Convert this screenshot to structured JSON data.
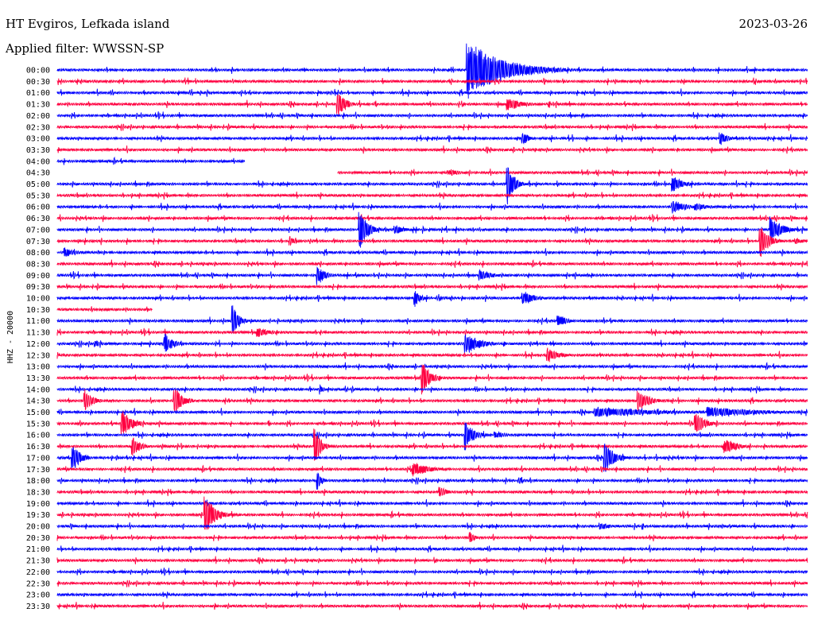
{
  "header": {
    "station": "HT Evgiros, Lefkada island",
    "filter": "Applied filter: WWSSN-SP",
    "date": "2023-03-26"
  },
  "colors": {
    "blue": "#0000ff",
    "red": "#ff0040"
  },
  "chart_data": {
    "type": "helicorder",
    "ylabel": "HHZ - 20000",
    "row_labels": [
      "00:00",
      "00:30",
      "01:00",
      "01:30",
      "02:00",
      "02:30",
      "03:00",
      "03:30",
      "04:00",
      "04:30",
      "05:00",
      "05:30",
      "06:00",
      "06:30",
      "07:00",
      "07:30",
      "08:00",
      "08:30",
      "09:00",
      "09:30",
      "10:00",
      "10:30",
      "11:00",
      "11:30",
      "12:00",
      "12:30",
      "13:00",
      "13:30",
      "14:00",
      "14:30",
      "15:00",
      "15:30",
      "16:00",
      "16:30",
      "17:00",
      "17:30",
      "18:00",
      "18:30",
      "19:00",
      "19:30",
      "20:00",
      "20:30",
      "21:00",
      "21:30",
      "22:00",
      "22:30",
      "23:00",
      "23:30"
    ],
    "row_minutes": 30,
    "gaps": [
      {
        "row": 8,
        "from_min": 7.5,
        "to_min": 30
      },
      {
        "row": 9,
        "from_min": 0,
        "to_min": 11.2
      },
      {
        "row": 21,
        "from_min": 3.8,
        "to_min": 30
      }
    ],
    "events": [
      {
        "row": 0,
        "min": 16.4,
        "amp": 2.6,
        "dur": 1.8,
        "big": true
      },
      {
        "row": 1,
        "min": 9.3,
        "amp": 0.15,
        "dur": 0.3
      },
      {
        "row": 3,
        "min": 11.2,
        "amp": 1.0,
        "dur": 0.4
      },
      {
        "row": 3,
        "min": 18.0,
        "amp": 0.5,
        "dur": 0.8
      },
      {
        "row": 6,
        "min": 18.6,
        "amp": 0.6,
        "dur": 0.3
      },
      {
        "row": 6,
        "min": 26.5,
        "amp": 0.6,
        "dur": 0.4
      },
      {
        "row": 9,
        "min": 15.7,
        "amp": 0.25,
        "dur": 0.6
      },
      {
        "row": 10,
        "min": 18.0,
        "amp": 1.8,
        "dur": 0.3
      },
      {
        "row": 10,
        "min": 24.6,
        "amp": 0.7,
        "dur": 0.5
      },
      {
        "row": 12,
        "min": 24.6,
        "amp": 0.5,
        "dur": 0.8
      },
      {
        "row": 12,
        "min": 25.5,
        "amp": 0.3,
        "dur": 0.8
      },
      {
        "row": 14,
        "min": 12.1,
        "amp": 1.5,
        "dur": 0.4
      },
      {
        "row": 14,
        "min": 13.5,
        "amp": 0.4,
        "dur": 0.5
      },
      {
        "row": 14,
        "min": 28.5,
        "amp": 1.0,
        "dur": 0.6
      },
      {
        "row": 15,
        "min": 9.3,
        "amp": 0.4,
        "dur": 0.3
      },
      {
        "row": 15,
        "min": 28.1,
        "amp": 1.4,
        "dur": 0.4
      },
      {
        "row": 15,
        "min": 29.5,
        "amp": 0.3,
        "dur": 0.4
      },
      {
        "row": 16,
        "min": 0.3,
        "amp": 0.4,
        "dur": 0.5
      },
      {
        "row": 18,
        "min": 10.4,
        "amp": 0.8,
        "dur": 0.4
      },
      {
        "row": 18,
        "min": 16.9,
        "amp": 0.4,
        "dur": 0.7
      },
      {
        "row": 20,
        "min": 14.3,
        "amp": 0.7,
        "dur": 0.3
      },
      {
        "row": 20,
        "min": 18.6,
        "amp": 0.6,
        "dur": 0.6
      },
      {
        "row": 22,
        "min": 7.0,
        "amp": 1.4,
        "dur": 0.3
      },
      {
        "row": 22,
        "min": 20.0,
        "amp": 0.6,
        "dur": 0.4
      },
      {
        "row": 23,
        "min": 8.0,
        "amp": 0.4,
        "dur": 0.7
      },
      {
        "row": 24,
        "min": 1.5,
        "amp": 0.3,
        "dur": 0.4
      },
      {
        "row": 24,
        "min": 4.3,
        "amp": 0.8,
        "dur": 0.4
      },
      {
        "row": 24,
        "min": 16.3,
        "amp": 0.9,
        "dur": 0.7
      },
      {
        "row": 25,
        "min": 19.6,
        "amp": 0.6,
        "dur": 0.6
      },
      {
        "row": 27,
        "min": 14.6,
        "amp": 1.3,
        "dur": 0.4
      },
      {
        "row": 28,
        "min": 10.5,
        "amp": 0.4,
        "dur": 0.2
      },
      {
        "row": 29,
        "min": 1.1,
        "amp": 0.9,
        "dur": 0.4
      },
      {
        "row": 29,
        "min": 4.7,
        "amp": 1.2,
        "dur": 0.4
      },
      {
        "row": 29,
        "min": 23.2,
        "amp": 0.8,
        "dur": 0.6
      },
      {
        "row": 30,
        "min": 21.5,
        "amp": 0.4,
        "dur": 3.5
      },
      {
        "row": 30,
        "min": 26.0,
        "amp": 0.4,
        "dur": 3.0
      },
      {
        "row": 31,
        "min": 2.6,
        "amp": 1.0,
        "dur": 0.5
      },
      {
        "row": 31,
        "min": 25.5,
        "amp": 0.9,
        "dur": 0.5
      },
      {
        "row": 32,
        "min": 16.3,
        "amp": 1.2,
        "dur": 0.4
      },
      {
        "row": 32,
        "min": 17.5,
        "amp": 0.3,
        "dur": 0.6
      },
      {
        "row": 33,
        "min": 10.3,
        "amp": 1.4,
        "dur": 0.3
      },
      {
        "row": 33,
        "min": 3.0,
        "amp": 0.8,
        "dur": 0.4
      },
      {
        "row": 33,
        "min": 26.7,
        "amp": 0.6,
        "dur": 0.6
      },
      {
        "row": 34,
        "min": 0.6,
        "amp": 1.1,
        "dur": 0.4
      },
      {
        "row": 34,
        "min": 21.9,
        "amp": 1.1,
        "dur": 0.5
      },
      {
        "row": 35,
        "min": 14.2,
        "amp": 0.6,
        "dur": 0.8
      },
      {
        "row": 36,
        "min": 10.4,
        "amp": 0.8,
        "dur": 0.2
      },
      {
        "row": 36,
        "min": 18.5,
        "amp": 0.3,
        "dur": 0.2
      },
      {
        "row": 37,
        "min": 15.3,
        "amp": 0.4,
        "dur": 0.4
      },
      {
        "row": 39,
        "min": 5.9,
        "amp": 1.5,
        "dur": 0.5
      },
      {
        "row": 40,
        "min": 21.7,
        "amp": 0.3,
        "dur": 0.6
      },
      {
        "row": 41,
        "min": 16.5,
        "amp": 0.6,
        "dur": 0.2
      },
      {
        "row": 43,
        "min": 13.2,
        "amp": 0.1,
        "dur": 0.3
      }
    ]
  }
}
